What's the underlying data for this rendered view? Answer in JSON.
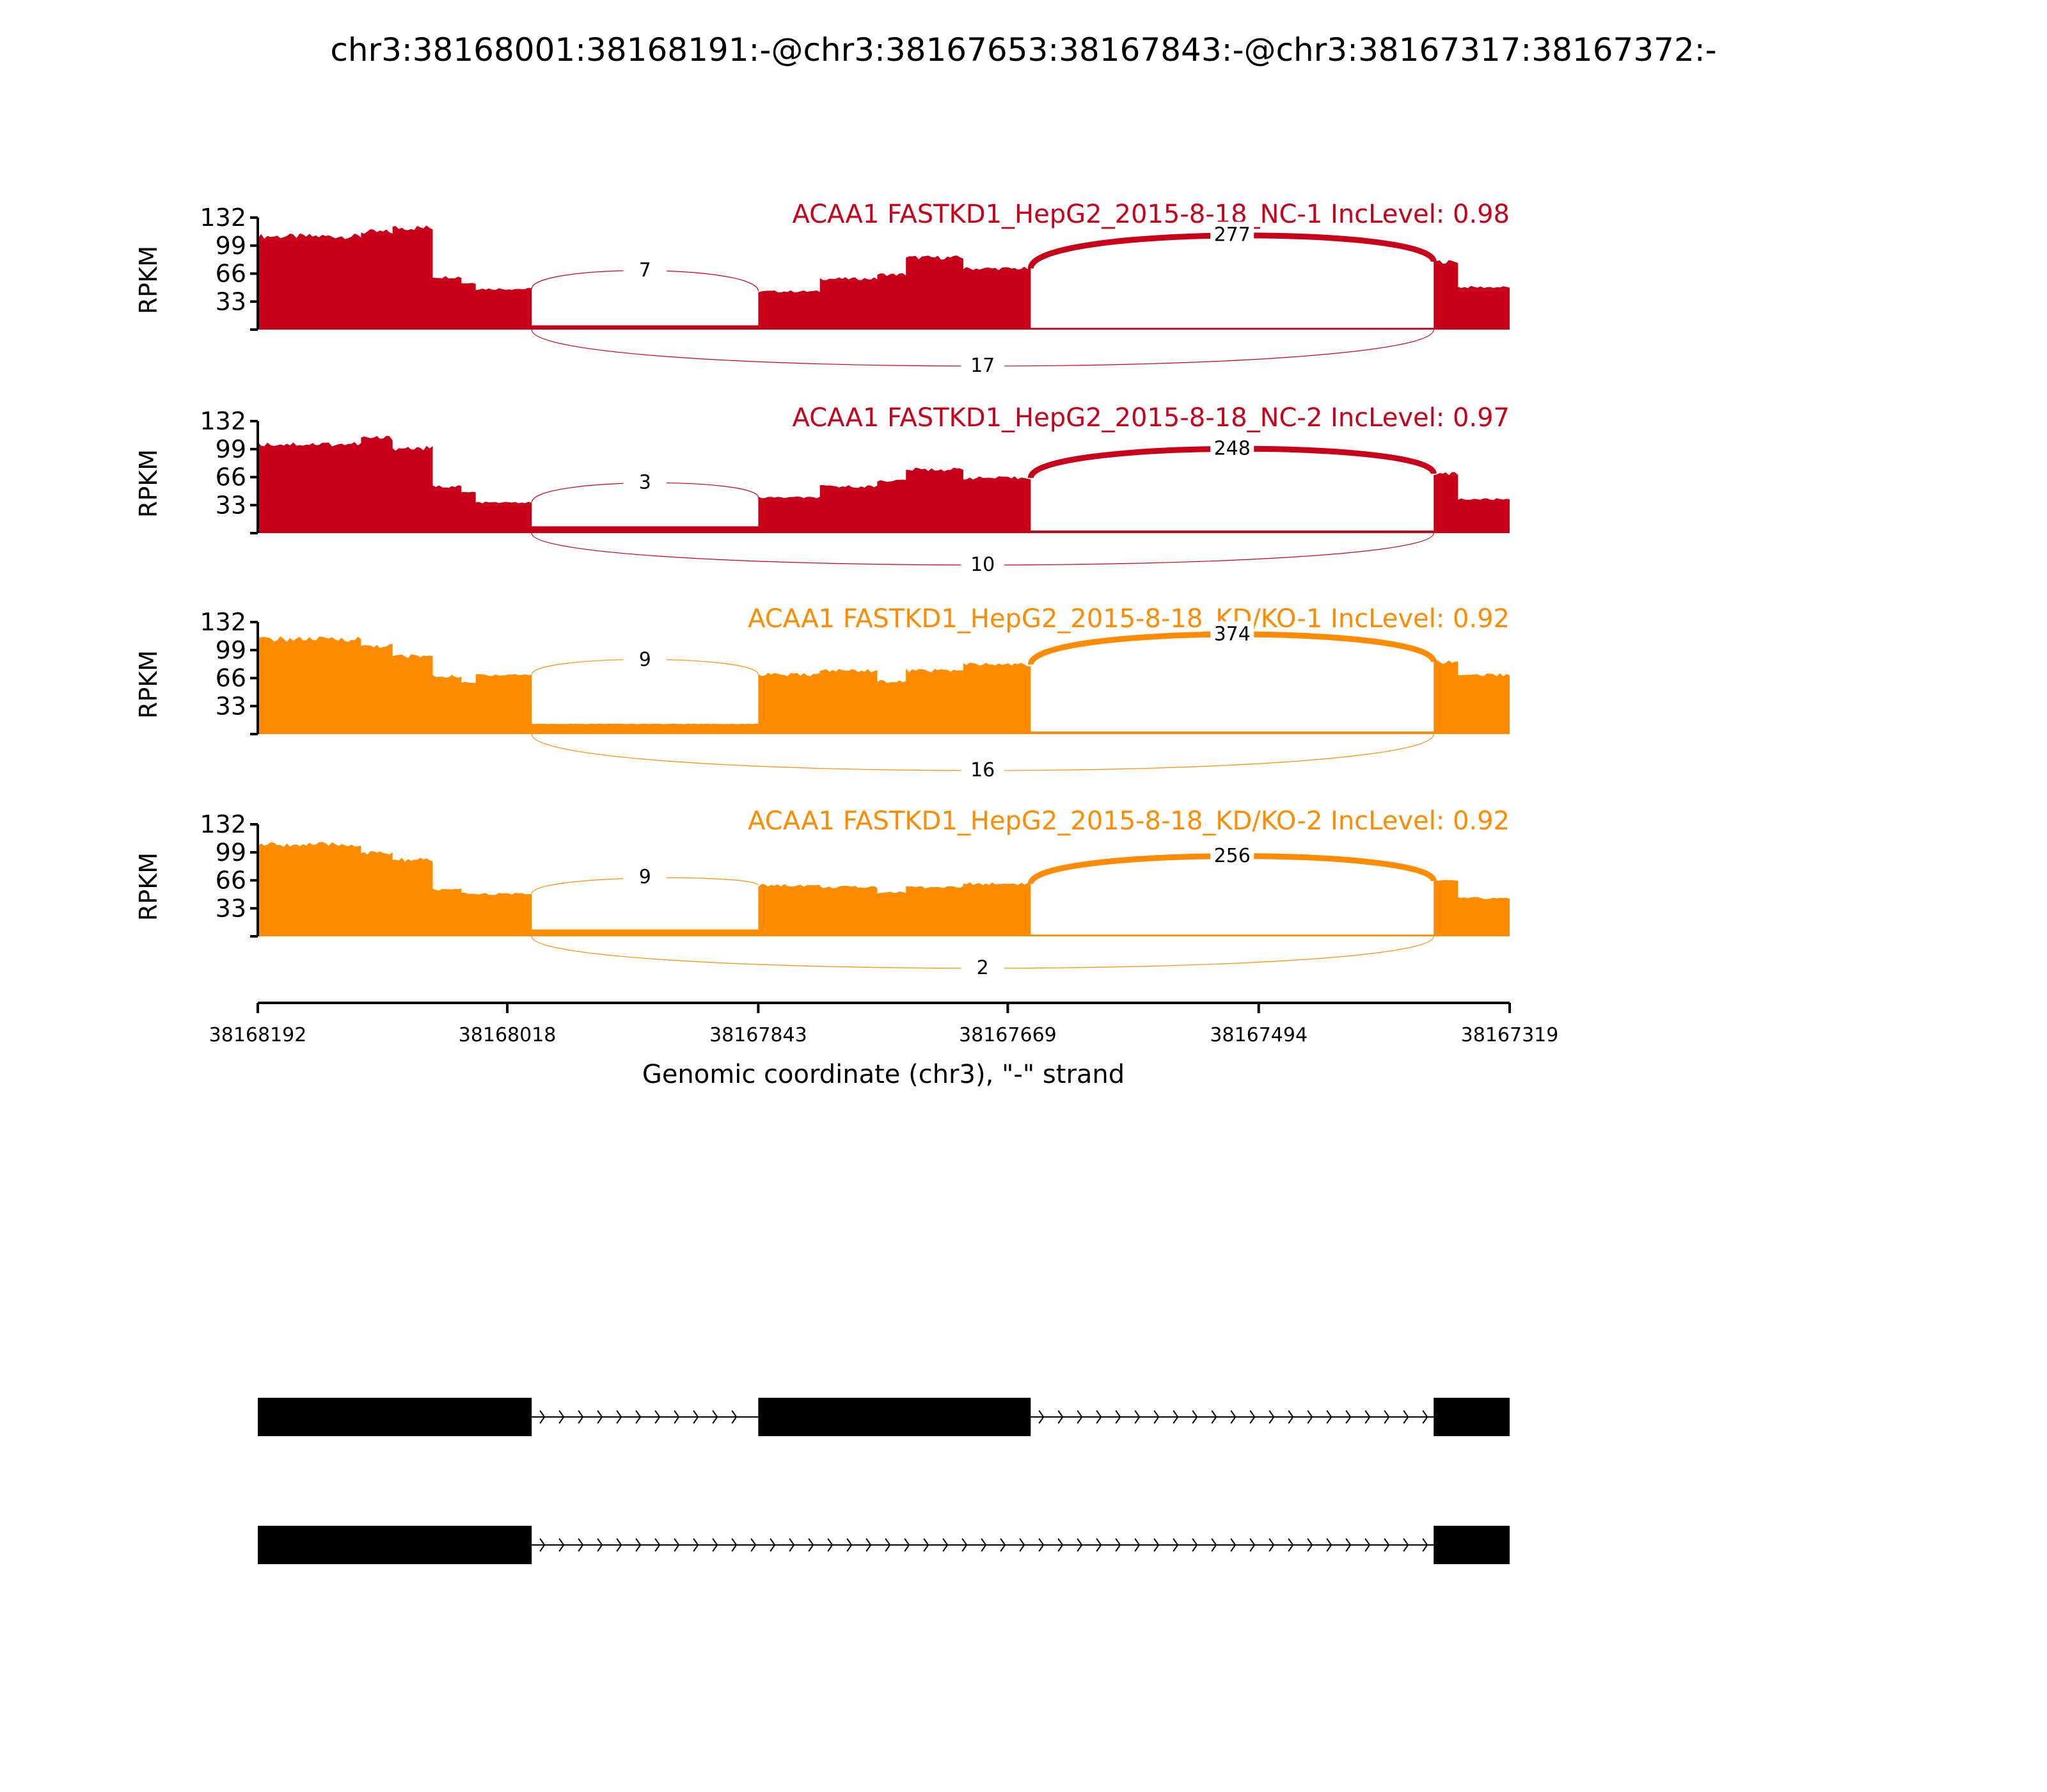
{
  "figure": {
    "title": "chr3:38168001:38168191:-@chr3:38167653:38167843:-@chr3:38167317:38167372:-"
  },
  "chart_data": {
    "type": "area",
    "chart_kind": "sashimi",
    "xlabel": "Genomic coordinate (chr3), \"-\" strand",
    "x_ticks": [
      "38168192",
      "38168018",
      "38167843",
      "38167669",
      "38167494",
      "38167319"
    ],
    "xlim": [
      38168192,
      38167319
    ],
    "ylabel": "RPKM",
    "yticks": [
      "33",
      "66",
      "99",
      "132"
    ],
    "ylim": [
      0,
      132
    ],
    "exons": [
      {
        "start": 38168192,
        "end": 38168001
      },
      {
        "start": 38167843,
        "end": 38167653
      },
      {
        "start": 38167372,
        "end": 38167319
      }
    ],
    "panels": [
      {
        "label": "ACAA1 FASTKD1_HepG2_2015-8-18_NC-1 IncLevel: 0.98",
        "color": "#c8001a",
        "levels": [
          [
            38168192,
            38168120,
            110
          ],
          [
            38168120,
            38168098,
            115
          ],
          [
            38168098,
            38168070,
            120
          ],
          [
            38168070,
            38168050,
            62
          ],
          [
            38168050,
            38168040,
            55
          ],
          [
            38168040,
            38168001,
            48
          ],
          [
            38168001,
            38167843,
            5
          ],
          [
            38167843,
            38167800,
            45
          ],
          [
            38167800,
            38167760,
            60
          ],
          [
            38167760,
            38167740,
            65
          ],
          [
            38167740,
            38167700,
            85
          ],
          [
            38167700,
            38167653,
            72
          ],
          [
            38167653,
            38167372,
            2
          ],
          [
            38167372,
            38167355,
            80
          ],
          [
            38167355,
            38167319,
            50
          ]
        ],
        "junctions": [
          {
            "from": 38168001,
            "to": 38167843,
            "reads": "7",
            "side": "above",
            "height": 70
          },
          {
            "from": 38167653,
            "to": 38167372,
            "reads": "277",
            "side": "above",
            "height": 112
          },
          {
            "from": 38168001,
            "to": 38167372,
            "reads": "17",
            "side": "below",
            "height": 40
          }
        ]
      },
      {
        "label": "ACAA1 FASTKD1_HepG2_2015-8-18_NC-2 IncLevel: 0.97",
        "color": "#c8001a",
        "levels": [
          [
            38168192,
            38168120,
            105
          ],
          [
            38168120,
            38168098,
            112
          ],
          [
            38168098,
            38168070,
            100
          ],
          [
            38168070,
            38168050,
            55
          ],
          [
            38168050,
            38168040,
            48
          ],
          [
            38168040,
            38168001,
            36
          ],
          [
            38168001,
            38167843,
            8
          ],
          [
            38167843,
            38167800,
            42
          ],
          [
            38167800,
            38167760,
            55
          ],
          [
            38167760,
            38167740,
            62
          ],
          [
            38167740,
            38167700,
            75
          ],
          [
            38167700,
            38167653,
            65
          ],
          [
            38167653,
            38167372,
            3
          ],
          [
            38167372,
            38167355,
            70
          ],
          [
            38167355,
            38167319,
            40
          ]
        ],
        "junctions": [
          {
            "from": 38168001,
            "to": 38167843,
            "reads": "3",
            "side": "above",
            "height": 60
          },
          {
            "from": 38167653,
            "to": 38167372,
            "reads": "248",
            "side": "above",
            "height": 100
          },
          {
            "from": 38168001,
            "to": 38167372,
            "reads": "10",
            "side": "below",
            "height": 35
          }
        ]
      },
      {
        "label": "ACAA1 FASTKD1_HepG2_2015-8-18_KD/KO-1 IncLevel: 0.92",
        "color": "#ff8c00",
        "levels": [
          [
            38168192,
            38168120,
            112
          ],
          [
            38168120,
            38168098,
            104
          ],
          [
            38168098,
            38168070,
            92
          ],
          [
            38168070,
            38168050,
            68
          ],
          [
            38168050,
            38168040,
            60
          ],
          [
            38168040,
            38168001,
            70
          ],
          [
            38168001,
            38167843,
            12
          ],
          [
            38167843,
            38167800,
            70
          ],
          [
            38167800,
            38167760,
            75
          ],
          [
            38167760,
            38167740,
            62
          ],
          [
            38167740,
            38167700,
            75
          ],
          [
            38167700,
            38167653,
            82
          ],
          [
            38167653,
            38167372,
            3
          ],
          [
            38167372,
            38167355,
            85
          ],
          [
            38167355,
            38167319,
            70
          ]
        ],
        "junctions": [
          {
            "from": 38168001,
            "to": 38167843,
            "reads": "9",
            "side": "above",
            "height": 88
          },
          {
            "from": 38167653,
            "to": 38167372,
            "reads": "374",
            "side": "above",
            "height": 118
          },
          {
            "from": 38168001,
            "to": 38167372,
            "reads": "16",
            "side": "below",
            "height": 40
          }
        ]
      },
      {
        "label": "ACAA1 FASTKD1_HepG2_2015-8-18_KD/KO-2 IncLevel: 0.92",
        "color": "#ff8c00",
        "levels": [
          [
            38168192,
            38168120,
            108
          ],
          [
            38168120,
            38168098,
            98
          ],
          [
            38168098,
            38168070,
            90
          ],
          [
            38168070,
            38168050,
            55
          ],
          [
            38168050,
            38168040,
            50
          ],
          [
            38168040,
            38168001,
            50
          ],
          [
            38168001,
            38167843,
            8
          ],
          [
            38167843,
            38167800,
            60
          ],
          [
            38167800,
            38167760,
            58
          ],
          [
            38167760,
            38167740,
            52
          ],
          [
            38167740,
            38167700,
            58
          ],
          [
            38167700,
            38167653,
            62
          ],
          [
            38167653,
            38167372,
            2
          ],
          [
            38167372,
            38167355,
            65
          ],
          [
            38167355,
            38167319,
            45
          ]
        ],
        "junctions": [
          {
            "from": 38168001,
            "to": 38167843,
            "reads": "9",
            "side": "above",
            "height": 70
          },
          {
            "from": 38167653,
            "to": 38167372,
            "reads": "256",
            "side": "above",
            "height": 95
          },
          {
            "from": 38168001,
            "to": 38167372,
            "reads": "2",
            "side": "below",
            "height": 35
          }
        ]
      }
    ],
    "isoforms": [
      {
        "exons": [
          {
            "start": 38168192,
            "end": 38168001
          },
          {
            "start": 38167843,
            "end": 38167653
          },
          {
            "start": 38167372,
            "end": 38167319
          }
        ]
      },
      {
        "exons": [
          {
            "start": 38168192,
            "end": 38168001
          },
          {
            "start": 38167372,
            "end": 38167319
          }
        ]
      }
    ]
  }
}
